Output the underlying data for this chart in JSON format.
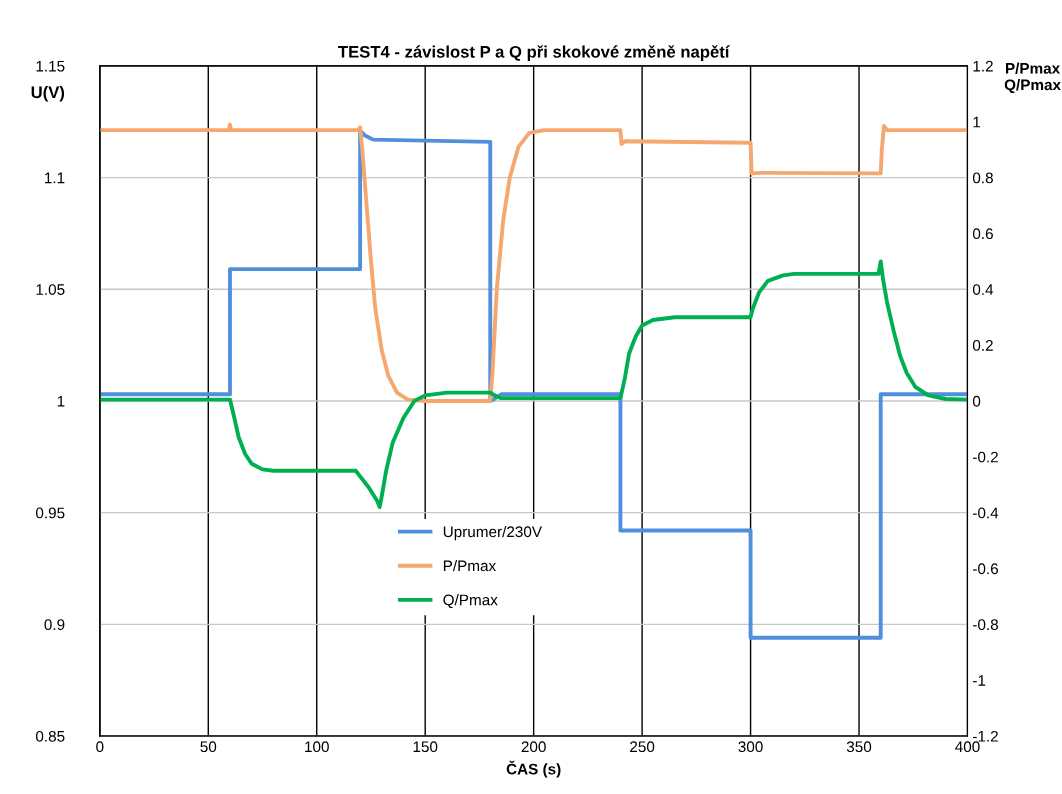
{
  "chart_data": {
    "type": "line",
    "title": "TEST4 - závislost P a Q při skokové změně napětí",
    "xlabel": "ČAS (s)",
    "ylabel": "U(V)",
    "y2label": "P/Pmax\nQ/Pmax",
    "xlim": [
      0,
      400
    ],
    "xticks": [
      0,
      50,
      100,
      150,
      200,
      250,
      300,
      350,
      400
    ],
    "ylim": [
      0.85,
      1.15
    ],
    "yticks": [
      0.85,
      0.9,
      0.95,
      1,
      1.05,
      1.1,
      1.15
    ],
    "y2lim": [
      -1.2,
      1.2
    ],
    "y2ticks": [
      -1.2,
      -1,
      -0.8,
      -0.6,
      -0.4,
      -0.2,
      0,
      0.2,
      0.4,
      0.6,
      0.8,
      1,
      1.2
    ],
    "grid": true,
    "legend": "bottom left",
    "marker": "none",
    "line_style": "solid",
    "series": [
      {
        "name": "Uprumer/230V",
        "color": "#4f8fdc",
        "x": [
          0,
          60,
          60,
          120,
          120,
          122,
          126,
          180,
          180,
          182,
          185,
          240,
          240,
          300,
          300,
          360,
          360,
          400
        ],
        "values": [
          1.003,
          1.003,
          1.059,
          1.059,
          1.121,
          1.119,
          1.117,
          1.116,
          1.0,
          1.001,
          1.003,
          1.003,
          0.942,
          0.942,
          0.894,
          0.894,
          1.003,
          1.003
        ]
      },
      {
        "name": "P/Pmax",
        "color": "#f4a870",
        "axis": "y2",
        "x": [
          0,
          59.5,
          60,
          60.5,
          119,
          120,
          121,
          123,
          125,
          127,
          130,
          133,
          137,
          142,
          150,
          180,
          181,
          183,
          186,
          189,
          193,
          198,
          205,
          240,
          240.5,
          242,
          300,
          300.5,
          305,
          360,
          360.5,
          361.5,
          363,
          400
        ],
        "values": [
          0.97,
          0.97,
          0.99,
          0.97,
          0.97,
          0.98,
          0.9,
          0.7,
          0.5,
          0.33,
          0.18,
          0.09,
          0.03,
          0.005,
          0,
          0,
          0.1,
          0.4,
          0.65,
          0.8,
          0.91,
          0.96,
          0.97,
          0.97,
          0.92,
          0.93,
          0.925,
          0.815,
          0.817,
          0.815,
          0.9,
          0.985,
          0.97,
          0.97
        ]
      },
      {
        "name": "Q/Pmax",
        "color": "#00b050",
        "axis": "y2",
        "x": [
          0,
          60,
          62,
          64,
          67,
          70,
          75,
          80,
          118,
          120,
          124,
          128,
          129,
          130,
          132,
          135,
          140,
          145,
          150,
          160,
          180,
          182,
          185,
          240,
          242,
          244,
          247,
          250,
          255,
          265,
          300,
          301,
          304,
          308,
          315,
          320,
          359,
          360,
          361,
          363,
          366,
          369,
          372,
          376,
          382,
          390,
          400
        ],
        "values": [
          0.005,
          0.005,
          -0.06,
          -0.13,
          -0.19,
          -0.225,
          -0.245,
          -0.25,
          -0.25,
          -0.27,
          -0.31,
          -0.36,
          -0.38,
          -0.34,
          -0.25,
          -0.15,
          -0.06,
          0,
          0.02,
          0.03,
          0.03,
          0.02,
          0.01,
          0.01,
          0.08,
          0.17,
          0.23,
          0.27,
          0.29,
          0.3,
          0.3,
          0.33,
          0.39,
          0.43,
          0.45,
          0.455,
          0.455,
          0.5,
          0.44,
          0.35,
          0.25,
          0.16,
          0.1,
          0.05,
          0.02,
          0.007,
          0.005
        ]
      }
    ]
  }
}
